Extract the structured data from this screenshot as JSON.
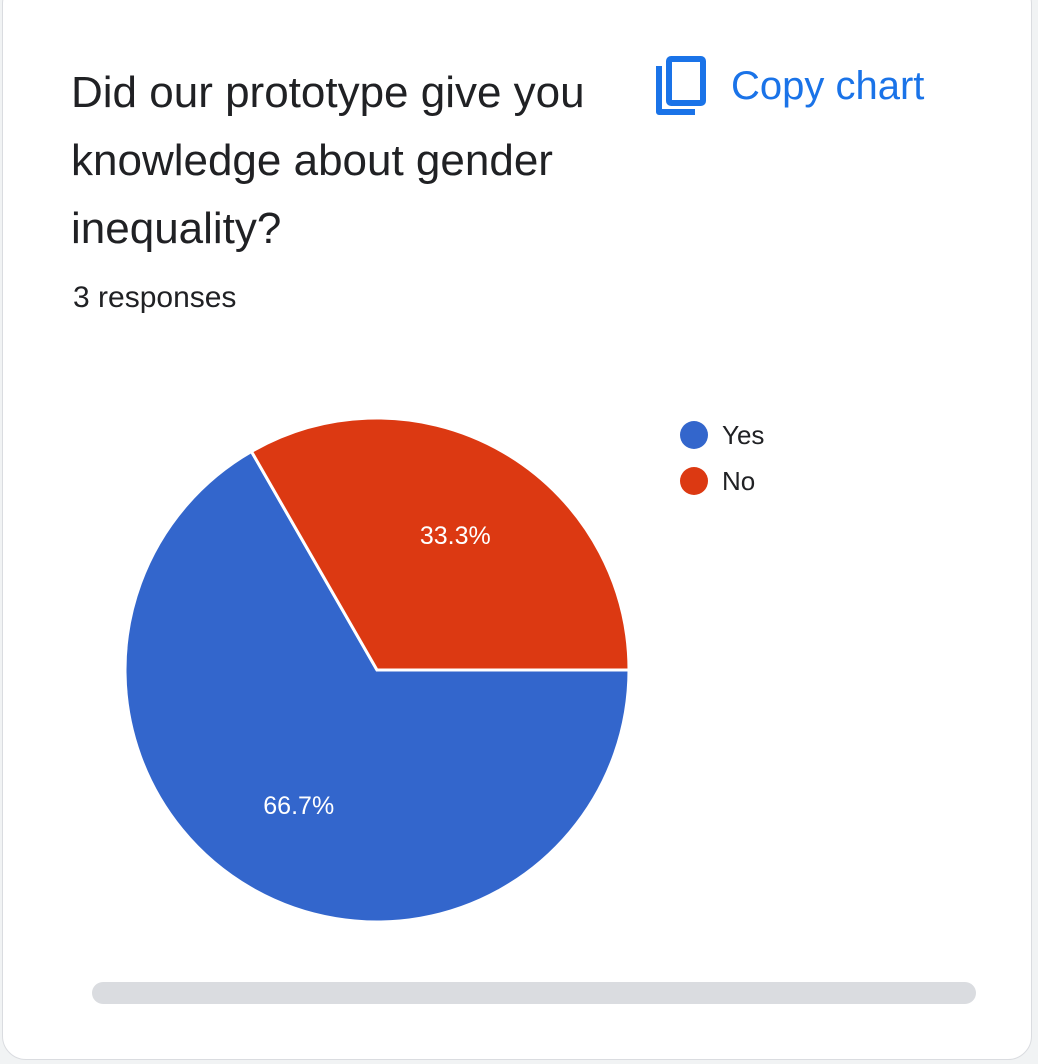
{
  "card": {
    "question": "Did our prototype give you knowledge about gender inequality?",
    "responses_text": "3 responses",
    "copy_label": "Copy chart",
    "icons": {
      "copy": "copy-icon"
    }
  },
  "colors": {
    "accent": "#1a73e8",
    "yes": "#3366cc",
    "no": "#dc3912"
  },
  "chart_data": {
    "type": "pie",
    "categories": [
      "Yes",
      "No"
    ],
    "values": [
      66.7,
      33.3
    ],
    "labels": [
      "66.7%",
      "33.3%"
    ],
    "colors": [
      "#3366cc",
      "#dc3912"
    ],
    "legend_position": "right"
  }
}
